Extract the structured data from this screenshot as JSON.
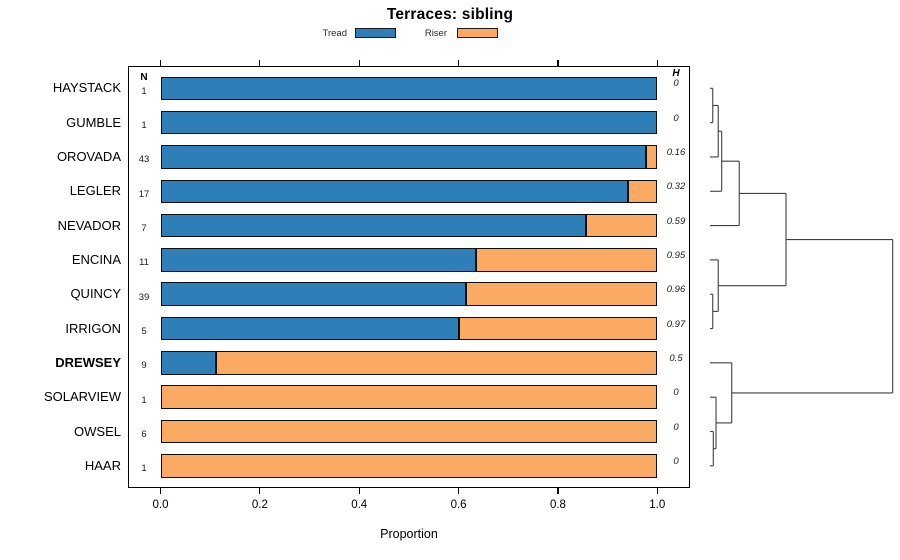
{
  "title": "Terraces: sibling",
  "legend": {
    "items": [
      {
        "label": "Tread",
        "color": "#2E7EB8"
      },
      {
        "label": "Riser",
        "color": "#FAAA62"
      }
    ]
  },
  "columns": {
    "n_header": "N",
    "h_header": "H"
  },
  "axis": {
    "xlabel": "Proportion",
    "ticks": [
      "0.0",
      "0.2",
      "0.4",
      "0.6",
      "0.8",
      "1.0"
    ],
    "tick_values": [
      0,
      0.2,
      0.4,
      0.6,
      0.8,
      1.0
    ]
  },
  "chart_data": {
    "type": "bar",
    "orientation": "horizontal",
    "stacked": true,
    "title": "Terraces: sibling",
    "xlabel": "Proportion",
    "xlim": [
      0,
      1
    ],
    "grid": false,
    "legend_position": "top",
    "categories": [
      "HAYSTACK",
      "GUMBLE",
      "OROVADA",
      "LEGLER",
      "NEVADOR",
      "ENCINA",
      "QUINCY",
      "IRRIGON",
      "DREWSEY",
      "SOLARVIEW",
      "OWSEL",
      "HAAR"
    ],
    "emphasized_category": "DREWSEY",
    "series": [
      {
        "name": "Tread",
        "color": "#2E7EB8",
        "values": [
          1,
          1,
          0.977,
          0.941,
          0.857,
          0.636,
          0.615,
          0.6,
          0.111,
          0,
          0,
          0
        ]
      },
      {
        "name": "Riser",
        "color": "#FAAA62",
        "values": [
          0,
          0,
          0.023,
          0.059,
          0.143,
          0.364,
          0.385,
          0.4,
          0.889,
          1,
          1,
          1
        ]
      }
    ],
    "n": [
      1,
      1,
      43,
      17,
      7,
      11,
      39,
      5,
      9,
      1,
      6,
      1
    ],
    "h": [
      "0",
      "0",
      "0.16",
      "0.32",
      "0.59",
      "0.95",
      "0.96",
      "0.97",
      "0.5",
      "0",
      "0",
      "0"
    ],
    "dendrogram": {
      "h": 1.0,
      "children": [
        {
          "h": 0.416,
          "children": [
            {
              "h": 0.16,
              "children": [
                {
                  "h": 0.064,
                  "children": [
                    {
                      "h": 0.045,
                      "children": [
                        {
                          "h": 0.015,
                          "children": [
                            {
                              "leaf": "HAYSTACK"
                            },
                            {
                              "leaf": "GUMBLE"
                            }
                          ]
                        },
                        {
                          "leaf": "OROVADA"
                        }
                      ]
                    },
                    {
                      "leaf": "LEGLER"
                    }
                  ]
                },
                {
                  "leaf": "NEVADOR"
                }
              ]
            },
            {
              "h": 0.045,
              "children": [
                {
                  "leaf": "ENCINA"
                },
                {
                  "h": 0.015,
                  "children": [
                    {
                      "leaf": "QUINCY"
                    },
                    {
                      "leaf": "IRRIGON"
                    }
                  ]
                }
              ]
            }
          ]
        },
        {
          "h": 0.119,
          "children": [
            {
              "leaf": "DREWSEY"
            },
            {
              "h": 0.033,
              "children": [
                {
                  "leaf": "SOLARVIEW"
                },
                {
                  "h": 0.018,
                  "children": [
                    {
                      "leaf": "OWSEL"
                    },
                    {
                      "leaf": "HAAR"
                    }
                  ]
                }
              ]
            }
          ]
        }
      ]
    }
  }
}
